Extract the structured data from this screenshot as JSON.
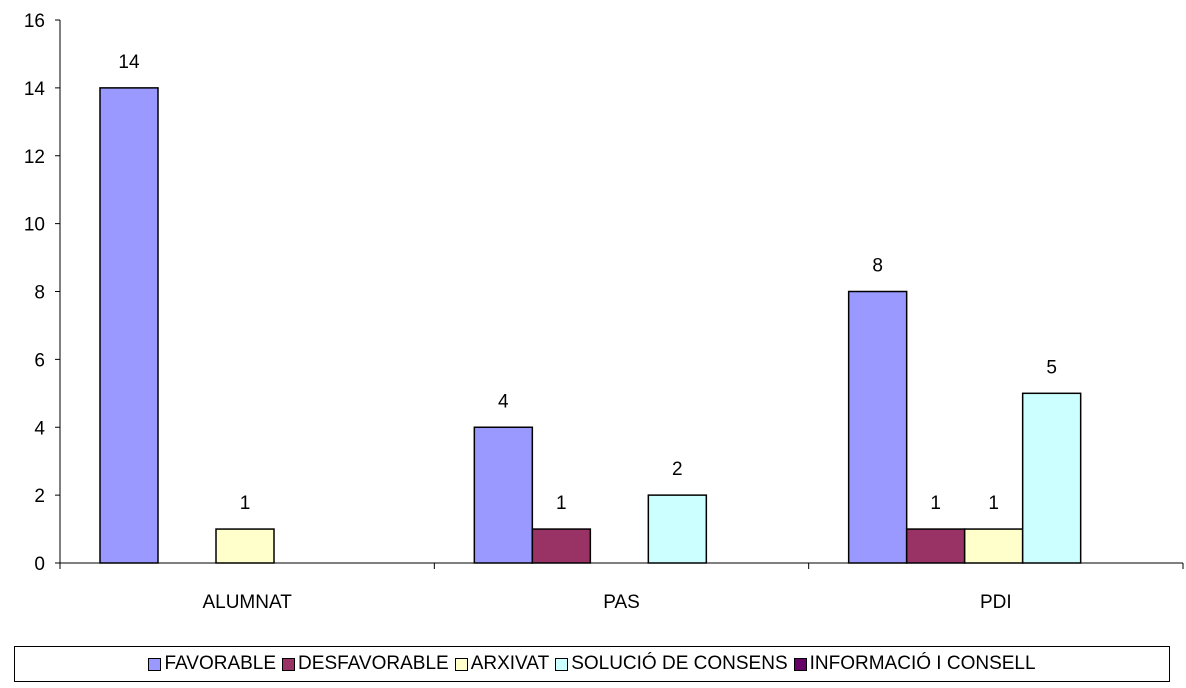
{
  "chart_data": {
    "type": "bar",
    "categories": [
      "ALUMNAT",
      "PAS",
      "PDI"
    ],
    "series": [
      {
        "name": "FAVORABLE",
        "color": "#9999ff",
        "values": [
          14,
          4,
          8
        ]
      },
      {
        "name": "DESFAVORABLE",
        "color": "#993366",
        "values": [
          null,
          1,
          1
        ]
      },
      {
        "name": "ARXIVAT",
        "color": "#ffffcc",
        "values": [
          1,
          null,
          1
        ]
      },
      {
        "name": "SOLUCIÓ DE CONSENS",
        "color": "#ccffff",
        "values": [
          null,
          2,
          5
        ]
      },
      {
        "name": "INFORMACIÓ I CONSELL",
        "color": "#660066",
        "values": [
          null,
          null,
          null
        ]
      }
    ],
    "yticks": [
      0,
      2,
      4,
      6,
      8,
      10,
      12,
      14,
      16
    ],
    "ylim": [
      0,
      16
    ],
    "grid": false,
    "legend_position": "bottom",
    "title": "",
    "xlabel": "",
    "ylabel": ""
  }
}
